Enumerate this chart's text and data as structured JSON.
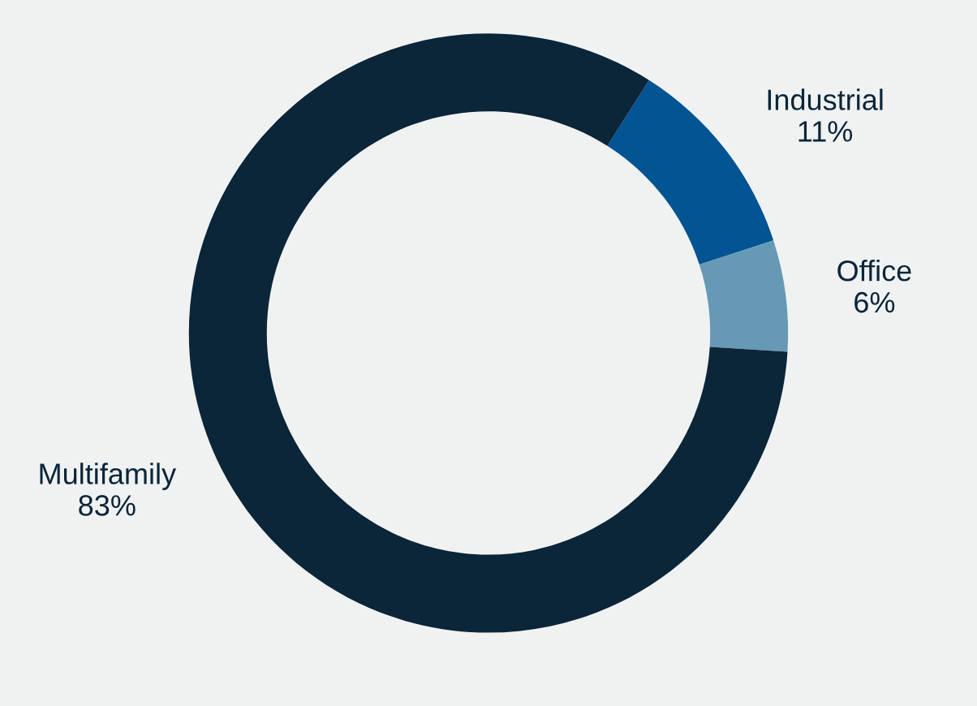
{
  "chart_data": {
    "type": "donut",
    "categories": [
      "Industrial",
      "Office",
      "Multifamily"
    ],
    "values": [
      11,
      6,
      83
    ],
    "value_labels": [
      "11%",
      "6%",
      "83%"
    ],
    "colors": [
      "#025493",
      "#6699b5",
      "#0b2539"
    ],
    "legend": false
  }
}
